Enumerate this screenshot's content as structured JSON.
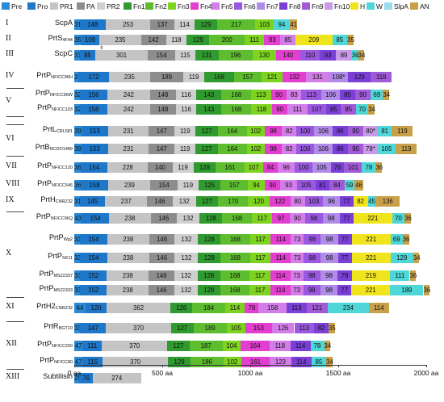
{
  "legend": [
    {
      "key": "Pre",
      "label": "Pre",
      "color": "#2b8ad6"
    },
    {
      "key": "Pro",
      "label": "Pro",
      "color": "#1e77c8"
    },
    {
      "key": "PR1",
      "label": "PR1",
      "color": "#c4c4c4"
    },
    {
      "key": "PA",
      "label": "PA",
      "color": "#8d8d8d"
    },
    {
      "key": "PR2",
      "label": "PR2",
      "color": "#cfcfcf"
    },
    {
      "key": "Fn1",
      "label": "Fn1",
      "color": "#2f9a2f"
    },
    {
      "key": "Fn2",
      "label": "Fn2",
      "color": "#5ebd2f"
    },
    {
      "key": "Fn3",
      "label": "Fn3",
      "color": "#7ed321"
    },
    {
      "key": "Fn4",
      "label": "Fn4",
      "color": "#e23fd0"
    },
    {
      "key": "Fn5",
      "label": "Fn5",
      "color": "#d37ee8"
    },
    {
      "key": "Fn6",
      "label": "Fn6",
      "color": "#9a58e0"
    },
    {
      "key": "Fn7",
      "label": "Fn7",
      "color": "#b08be8"
    },
    {
      "key": "Fn8",
      "label": "Fn8",
      "color": "#7a3fd6"
    },
    {
      "key": "Fn9",
      "label": "Fn9",
      "color": "#a05ad8"
    },
    {
      "key": "Fn10",
      "label": "Fn10",
      "color": "#c89ae8"
    },
    {
      "key": "H",
      "label": "H",
      "color": "#f0e51d"
    },
    {
      "key": "W",
      "label": "W",
      "color": "#4fd6d6"
    },
    {
      "key": "SlpA",
      "label": "SlpA",
      "color": "#98dcec"
    },
    {
      "key": "AN",
      "label": "AN",
      "color": "#c9a04a"
    }
  ],
  "axis": {
    "ticks": [
      0,
      500,
      1000,
      1500,
      2000
    ],
    "labels": [
      "0 aa",
      "500 aa",
      "1000 aa",
      "1500 aa",
      "2000 aa"
    ],
    "max": 2000
  },
  "groups": [
    "I",
    "II",
    "III",
    "IV",
    "V",
    "VI",
    "VII",
    "VIII",
    "IX",
    "X",
    "XI",
    "XII",
    "XIII"
  ],
  "rows": [
    {
      "group": "I",
      "name": "ScpA",
      "sub": "",
      "segs": [
        [
          "Pre",
          "31"
        ],
        [
          "Pro",
          "148"
        ],
        [
          "PR1",
          "253"
        ],
        [
          "PA",
          "137"
        ],
        [
          "PR2",
          "114"
        ],
        [
          "Fn1",
          "129"
        ],
        [
          "Fn2",
          "217"
        ],
        [
          "Fn3",
          "103"
        ],
        [
          "W",
          "94"
        ],
        [
          "AN",
          "41"
        ]
      ]
    },
    {
      "group": "II",
      "name": "PrtS",
      "sub": "4F44",
      "segs": [
        [
          "Pre",
          "35"
        ],
        [
          "Pro",
          "109"
        ],
        [
          "PR1",
          "235"
        ],
        [
          "PA",
          "142"
        ],
        [
          "PR2",
          "118"
        ],
        [
          "Fn1",
          "129"
        ],
        [
          "Fn2",
          "200"
        ],
        [
          "Fn3",
          "111"
        ],
        [
          "Fn4",
          "93"
        ],
        [
          "Fn5",
          "85"
        ],
        [
          "H",
          "209"
        ],
        [
          "W",
          "85"
        ],
        [
          "AN",
          "35"
        ]
      ]
    },
    {
      "group": "III",
      "name": "ScpC",
      "sub": "",
      "segs": [
        [
          "Pre",
          "33"
        ],
        [
          "Pro",
          "85"
        ],
        [
          "PR1",
          "301"
        ],
        [
          "PA",
          "154"
        ],
        [
          "PR2",
          "115"
        ],
        [
          "Fn1",
          "131"
        ],
        [
          "Fn2",
          "196"
        ],
        [
          "Fn3",
          "130"
        ],
        [
          "Fn4",
          "140"
        ],
        [
          "Fn6",
          "110"
        ],
        [
          "Fn8",
          "93"
        ],
        [
          "Fn10",
          "89"
        ],
        [
          "W",
          "36"
        ],
        [
          "AN",
          "34"
        ]
      ]
    },
    {
      "group": "IV",
      "name": "PrtP",
      "sub": "NFICC96H",
      "segs": [
        [
          "Pre",
          "24"
        ],
        [
          "Pro",
          "172"
        ],
        [
          "PR1",
          "235"
        ],
        [
          "PA",
          "189"
        ],
        [
          "PR2",
          "119"
        ],
        [
          "Fn1",
          "168"
        ],
        [
          "Fn2",
          "157"
        ],
        [
          "Fn3",
          "121"
        ],
        [
          "Fn4",
          "132"
        ],
        [
          "Fn5",
          "131"
        ],
        [
          "Fn7",
          "108*"
        ],
        [
          "Fn8",
          "129"
        ],
        [
          "Fn9",
          "118"
        ]
      ]
    },
    {
      "group": "V",
      "name": "PrtP",
      "sub": "NFICC96W",
      "segs": [
        [
          "Pre",
          "32"
        ],
        [
          "Pro",
          "156"
        ],
        [
          "PR1",
          "242"
        ],
        [
          "PA",
          "148"
        ],
        [
          "PR2",
          "116"
        ],
        [
          "Fn1",
          "143"
        ],
        [
          "Fn2",
          "168"
        ],
        [
          "Fn3",
          "113"
        ],
        [
          "Fn4",
          "90"
        ],
        [
          "Fn5",
          "83"
        ],
        [
          "Fn6",
          "113"
        ],
        [
          "Fn7",
          "106"
        ],
        [
          "Fn8",
          "85"
        ],
        [
          "Fn9",
          "90"
        ],
        [
          "W",
          "69"
        ],
        [
          "AN",
          "34"
        ]
      ]
    },
    {
      "group": "V",
      "name": "PrtP",
      "sub": "NFICC103",
      "segs": [
        [
          "Pre",
          "32"
        ],
        [
          "Pro",
          "156"
        ],
        [
          "PR1",
          "242"
        ],
        [
          "PA",
          "148"
        ],
        [
          "PR2",
          "116"
        ],
        [
          "Fn1",
          "143"
        ],
        [
          "Fn2",
          "168"
        ],
        [
          "Fn3",
          "118"
        ],
        [
          "Fn4",
          "90"
        ],
        [
          "Fn5",
          "111"
        ],
        [
          "Fn6",
          "107"
        ],
        [
          "Fn8",
          "85"
        ],
        [
          "Fn9",
          "85"
        ],
        [
          "W",
          "70"
        ],
        [
          "AN",
          "34"
        ]
      ]
    },
    {
      "group": "VI",
      "name": "PrtL",
      "sub": "CRL581",
      "segs": [
        [
          "Pre",
          "39"
        ],
        [
          "Pro",
          "153"
        ],
        [
          "PR1",
          "231"
        ],
        [
          "PA",
          "147"
        ],
        [
          "PR2",
          "119"
        ],
        [
          "Fn1",
          "127"
        ],
        [
          "Fn2",
          "164"
        ],
        [
          "Fn3",
          "102"
        ],
        [
          "Fn4",
          "98"
        ],
        [
          "Fn5",
          "82"
        ],
        [
          "Fn6",
          "100"
        ],
        [
          "Fn7",
          "106"
        ],
        [
          "Fn8",
          "86"
        ],
        [
          "Fn9",
          "90"
        ],
        [
          "Fn10",
          "80*"
        ],
        [
          "W",
          "81"
        ],
        [
          "AN",
          "119"
        ]
      ]
    },
    {
      "group": "VI",
      "name": "PrtB",
      "sub": "NCDO1489",
      "segs": [
        [
          "Pre",
          "39"
        ],
        [
          "Pro",
          "153"
        ],
        [
          "PR1",
          "231"
        ],
        [
          "PA",
          "147"
        ],
        [
          "PR2",
          "119"
        ],
        [
          "Fn1",
          "127"
        ],
        [
          "Fn2",
          "164"
        ],
        [
          "Fn3",
          "102"
        ],
        [
          "Fn4",
          "98"
        ],
        [
          "Fn5",
          "82"
        ],
        [
          "Fn6",
          "100"
        ],
        [
          "Fn7",
          "106"
        ],
        [
          "Fn8",
          "86"
        ],
        [
          "Fn9",
          "90"
        ],
        [
          "Fn10",
          "78*"
        ],
        [
          "W",
          "105"
        ],
        [
          "AN",
          "119"
        ]
      ]
    },
    {
      "group": "VII",
      "name": "PrtP",
      "sub": "NFICC120",
      "segs": [
        [
          "Pre",
          "36"
        ],
        [
          "Pro",
          "154"
        ],
        [
          "PR1",
          "228"
        ],
        [
          "PA",
          "140"
        ],
        [
          "PR2",
          "119"
        ],
        [
          "Fn1",
          "128"
        ],
        [
          "Fn2",
          "161"
        ],
        [
          "Fn3",
          "107"
        ],
        [
          "Fn4",
          "84"
        ],
        [
          "Fn5",
          "96"
        ],
        [
          "Fn6",
          "100"
        ],
        [
          "Fn7",
          "105"
        ],
        [
          "Fn8",
          "76"
        ],
        [
          "Fn9",
          "101"
        ],
        [
          "W",
          "78"
        ],
        [
          "AN",
          "36"
        ]
      ]
    },
    {
      "group": "VIII",
      "name": "PrtP",
      "sub": "NFICC546",
      "segs": [
        [
          "Pre",
          "36"
        ],
        [
          "Pro",
          "158"
        ],
        [
          "PR1",
          "239"
        ],
        [
          "PA",
          "154"
        ],
        [
          "PR2",
          "119"
        ],
        [
          "Fn1",
          "125"
        ],
        [
          "Fn2",
          "157"
        ],
        [
          "Fn3",
          "94"
        ],
        [
          "Fn4",
          "90"
        ],
        [
          "Fn5",
          "93"
        ],
        [
          "Fn6",
          "105"
        ],
        [
          "Fn8",
          "81"
        ],
        [
          "Fn9",
          "84"
        ],
        [
          "W",
          "59"
        ],
        [
          "AN",
          "46"
        ]
      ]
    },
    {
      "group": "IX",
      "name": "PrtH",
      "sub": "CNRZ32",
      "segs": [
        [
          "Pre",
          "31"
        ],
        [
          "Pro",
          "145"
        ],
        [
          "PR1",
          "237"
        ],
        [
          "PA",
          "146"
        ],
        [
          "PR2",
          "132"
        ],
        [
          "Fn1",
          "127"
        ],
        [
          "Fn2",
          "170"
        ],
        [
          "Fn3",
          "120"
        ],
        [
          "Fn4",
          "122"
        ],
        [
          "Fn5",
          "80"
        ],
        [
          "Fn6",
          "103"
        ],
        [
          "Fn7",
          "96"
        ],
        [
          "Fn8",
          "77"
        ],
        [
          "H",
          "82"
        ],
        [
          "W",
          "45"
        ],
        [
          "AN",
          "136"
        ]
      ]
    },
    {
      "group": "X",
      "name": "PrtP",
      "sub": "NFICC96Q",
      "segs": [
        [
          "Pre",
          "43"
        ],
        [
          "Pro",
          "154"
        ],
        [
          "PR1",
          "238"
        ],
        [
          "PA",
          "146"
        ],
        [
          "PR2",
          "132"
        ],
        [
          "Fn1",
          "128"
        ],
        [
          "Fn2",
          "168"
        ],
        [
          "Fn3",
          "117"
        ],
        [
          "Fn4",
          "97"
        ],
        [
          "Fn5",
          "90"
        ],
        [
          "Fn6",
          "98"
        ],
        [
          "Fn7",
          "98"
        ],
        [
          "Fn8",
          "77"
        ],
        [
          "H",
          "221"
        ],
        [
          "W",
          "70"
        ],
        [
          "AN",
          "36"
        ]
      ]
    },
    {
      "group": "X",
      "name": "PrtP",
      "sub": "Wg2",
      "segs": [
        [
          "Pre",
          "33"
        ],
        [
          "Pro",
          "154"
        ],
        [
          "PR1",
          "238"
        ],
        [
          "PA",
          "146"
        ],
        [
          "PR2",
          "132"
        ],
        [
          "Fn1",
          "128"
        ],
        [
          "Fn2",
          "168"
        ],
        [
          "Fn3",
          "117"
        ],
        [
          "Fn4",
          "114"
        ],
        [
          "Fn5",
          "73"
        ],
        [
          "Fn6",
          "98"
        ],
        [
          "Fn7",
          "98"
        ],
        [
          "Fn8",
          "77"
        ],
        [
          "H",
          "221"
        ],
        [
          "W",
          "69"
        ],
        [
          "AN",
          "36"
        ]
      ]
    },
    {
      "group": "X",
      "name": "PrtP",
      "sub": "SK11",
      "segs": [
        [
          "Pre",
          "33"
        ],
        [
          "Pro",
          "154"
        ],
        [
          "PR1",
          "238"
        ],
        [
          "PA",
          "146"
        ],
        [
          "PR2",
          "132"
        ],
        [
          "Fn1",
          "128"
        ],
        [
          "Fn2",
          "168"
        ],
        [
          "Fn3",
          "117"
        ],
        [
          "Fn4",
          "114"
        ],
        [
          "Fn5",
          "73"
        ],
        [
          "Fn6",
          "98"
        ],
        [
          "Fn7",
          "98"
        ],
        [
          "Fn8",
          "77"
        ],
        [
          "H",
          "221"
        ],
        [
          "W",
          "129"
        ],
        [
          "AN",
          "34"
        ]
      ]
    },
    {
      "group": "X",
      "name": "PrtP",
      "sub": "MS22337",
      "segs": [
        [
          "Pre",
          "33"
        ],
        [
          "Pro",
          "152"
        ],
        [
          "PR1",
          "238"
        ],
        [
          "PA",
          "146"
        ],
        [
          "PR2",
          "132"
        ],
        [
          "Fn1",
          "128"
        ],
        [
          "Fn2",
          "168"
        ],
        [
          "Fn3",
          "117"
        ],
        [
          "Fn4",
          "114"
        ],
        [
          "Fn5",
          "73"
        ],
        [
          "Fn6",
          "98"
        ],
        [
          "Fn7",
          "98"
        ],
        [
          "Fn8",
          "79"
        ],
        [
          "H",
          "219"
        ],
        [
          "W",
          "111"
        ],
        [
          "AN",
          "36"
        ]
      ]
    },
    {
      "group": "X",
      "name": "PrtP",
      "sub": "MS22333",
      "segs": [
        [
          "Pre",
          "33"
        ],
        [
          "Pro",
          "152"
        ],
        [
          "PR1",
          "238"
        ],
        [
          "PA",
          "146"
        ],
        [
          "PR2",
          "132"
        ],
        [
          "Fn1",
          "128"
        ],
        [
          "Fn2",
          "168"
        ],
        [
          "Fn3",
          "117"
        ],
        [
          "Fn4",
          "114"
        ],
        [
          "Fn5",
          "73"
        ],
        [
          "Fn6",
          "98"
        ],
        [
          "Fn7",
          "98"
        ],
        [
          "Fn8",
          "77"
        ],
        [
          "H",
          "221"
        ],
        [
          "W",
          "189"
        ],
        [
          "AN",
          "36"
        ]
      ]
    },
    {
      "group": "XI",
      "name": "PrtH2",
      "sub": "CNRZ32",
      "segs": [
        [
          "Pre",
          "64"
        ],
        [
          "Pro",
          "120"
        ],
        [
          "PR1",
          "362"
        ],
        [
          "Fn1",
          "126"
        ],
        [
          "Fn2",
          "184"
        ],
        [
          "Fn3",
          "114"
        ],
        [
          "Fn4",
          "78"
        ],
        [
          "Fn5",
          "158"
        ],
        [
          "Fn8",
          "113"
        ],
        [
          "Fn9",
          "121"
        ],
        [
          "W",
          "234"
        ],
        [
          "AN",
          "114"
        ]
      ]
    },
    {
      "group": "XII",
      "name": "PrtR",
      "sub": "BGT10",
      "segs": [
        [
          "Pre",
          "33"
        ],
        [
          "Pro",
          "147"
        ],
        [
          "PR1",
          "370"
        ],
        [
          "Fn1",
          "127"
        ],
        [
          "Fn2",
          "189"
        ],
        [
          "Fn3",
          "105"
        ],
        [
          "Fn4",
          "153"
        ],
        [
          "Fn5",
          "126"
        ],
        [
          "Fn6",
          "113"
        ],
        [
          "Fn8",
          "82"
        ],
        [
          "AN",
          "35"
        ]
      ]
    },
    {
      "group": "XII",
      "name": "PrtP",
      "sub": "NFICC200",
      "segs": [
        [
          "Pre",
          "47"
        ],
        [
          "Pro",
          "111"
        ],
        [
          "PR1",
          "370"
        ],
        [
          "Fn1",
          "127"
        ],
        [
          "Fn2",
          "187"
        ],
        [
          "Fn3",
          "104"
        ],
        [
          "Fn4",
          "164"
        ],
        [
          "Fn5",
          "118"
        ],
        [
          "Fn8",
          "114"
        ],
        [
          "W",
          "78"
        ],
        [
          "AN",
          "34"
        ]
      ]
    },
    {
      "group": "XII",
      "name": "PrtP",
      "sub": "NFICC80",
      "segs": [
        [
          "Pre",
          "47"
        ],
        [
          "Pro",
          "115"
        ],
        [
          "PR1",
          "370"
        ],
        [
          "Fn1",
          "129"
        ],
        [
          "Fn2",
          "186"
        ],
        [
          "Fn3",
          "102"
        ],
        [
          "Fn4",
          "161"
        ],
        [
          "Fn5",
          "123"
        ],
        [
          "Fn8",
          "114"
        ],
        [
          "W",
          "85"
        ],
        [
          "AN",
          "34"
        ]
      ]
    },
    {
      "group": "XIII",
      "name": "Subtilisin",
      "sub": "",
      "segs": [
        [
          "Pre",
          "29"
        ],
        [
          "Pro",
          "76"
        ],
        [
          "PR1",
          "274"
        ]
      ]
    }
  ],
  "marker": "↡"
}
